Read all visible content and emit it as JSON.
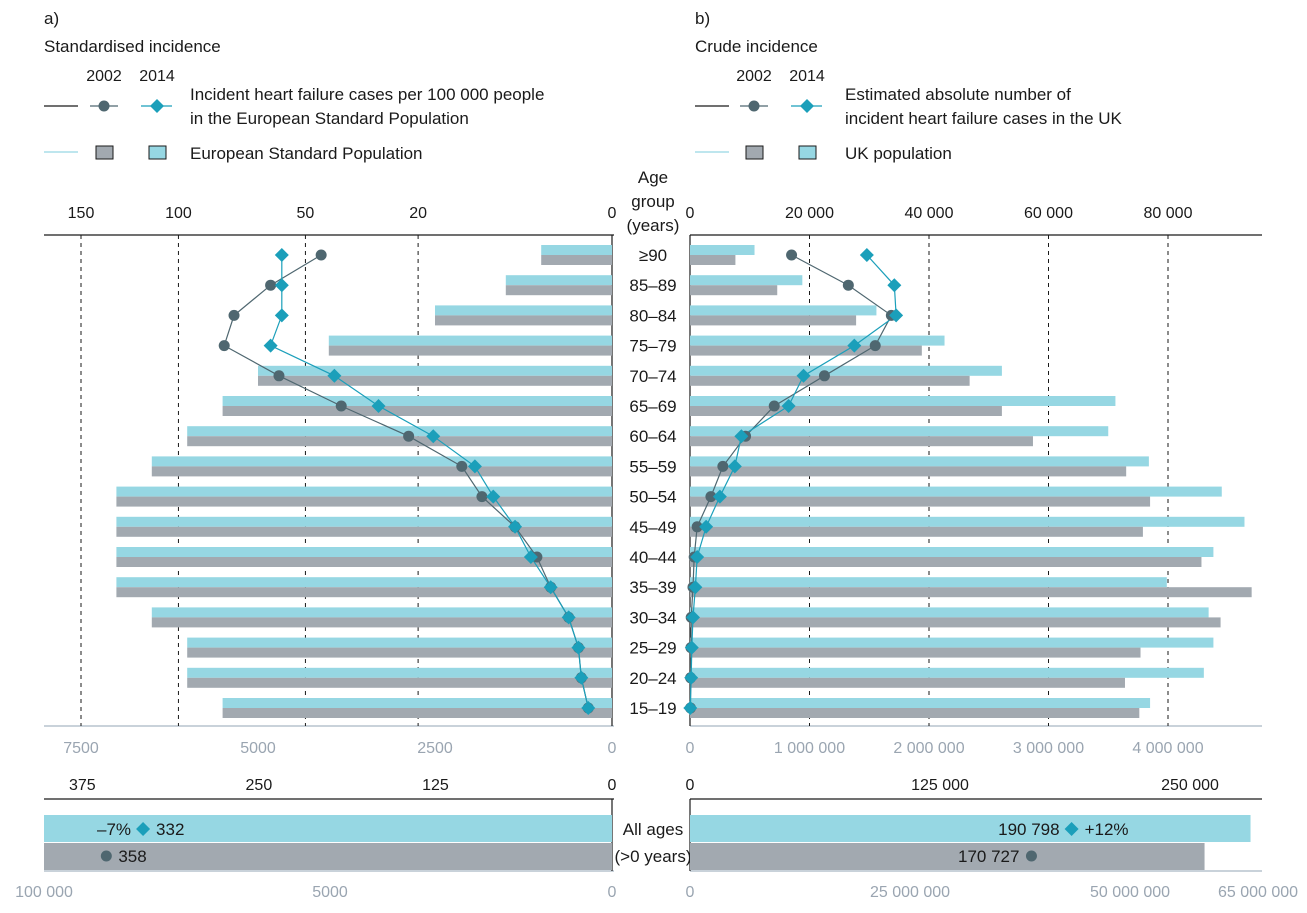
{
  "panels": {
    "a": {
      "letter": "a)",
      "title": "Standardised incidence"
    },
    "b": {
      "letter": "b)",
      "title": "Crude incidence"
    }
  },
  "legend": {
    "a": {
      "year_2002": "2002",
      "year_2014": "2014",
      "line1": "Incident heart failure cases per 100 000 people",
      "line2": "in the European Standard Population",
      "pop": "European Standard Population"
    },
    "b": {
      "year_2002": "2002",
      "year_2014": "2014",
      "line1": "Estimated absolute number of",
      "line2": "incident heart failure cases in the UK",
      "pop": "UK population"
    }
  },
  "center": {
    "head": [
      "Age",
      "group",
      "(years)"
    ],
    "all_ages_1": "All ages",
    "all_ages_2": "(>0 years)"
  },
  "colors": {
    "y2002": "#a2a9b0",
    "y2014": "#96d7e3",
    "marker2002": "#4f6770",
    "marker2014": "#1b9fba",
    "axis_secondary": "#a9b7c4"
  },
  "chart_data": [
    {
      "panel": "a",
      "type": "bar",
      "title": "Standardised incidence",
      "categories": [
        "15–19",
        "20–24",
        "25–29",
        "30–34",
        "35–39",
        "40–44",
        "45–49",
        "50–54",
        "55–59",
        "60–64",
        "65–69",
        "70–74",
        "75–79",
        "80–84",
        "85–89",
        "≥90"
      ],
      "incidence_axis_ticks": [
        "150",
        "100",
        "50",
        "20",
        "0"
      ],
      "population_axis_ticks": [
        "7500",
        "5000",
        "2500",
        "0"
      ],
      "population_xlim": [
        0,
        7500
      ],
      "population": [
        {
          "name": "2002",
          "values": [
            5500,
            6000,
            6000,
            6500,
            7000,
            7000,
            7000,
            7000,
            6500,
            6000,
            5500,
            5000,
            4000,
            2500,
            1500,
            1000
          ]
        },
        {
          "name": "2014",
          "values": [
            5500,
            6000,
            6000,
            6500,
            7000,
            7000,
            7000,
            7000,
            6500,
            6000,
            5500,
            5000,
            4000,
            2500,
            1500,
            1000
          ]
        }
      ],
      "incidence": [
        {
          "name": "2002",
          "values": [
            0.3,
            0.5,
            0.6,
            1,
            2,
            3,
            5,
            9,
            12,
            22,
            39,
            59,
            80,
            76,
            62,
            45
          ]
        },
        {
          "name": "2014",
          "values": [
            0.3,
            0.5,
            0.6,
            1,
            2,
            3.5,
            5,
            7.5,
            10,
            17,
            29,
            41,
            62,
            58,
            58,
            58
          ]
        }
      ],
      "summary": {
        "incidence_ticks": [
          "375",
          "250",
          "125",
          "0"
        ],
        "population_ticks": [
          "100 000",
          "5000",
          "0"
        ],
        "incidence_xlim": [
          0,
          400
        ],
        "incidence_2002": 358,
        "incidence_2014": 332,
        "label_2002": "358",
        "label_2014": "332",
        "change": "–7%"
      }
    },
    {
      "panel": "b",
      "type": "bar",
      "title": "Crude incidence",
      "categories": [
        "15–19",
        "20–24",
        "25–29",
        "30–34",
        "35–39",
        "40–44",
        "45–49",
        "50–54",
        "55–59",
        "60–64",
        "65–69",
        "70–74",
        "75–79",
        "80–84",
        "85–89",
        "≥90"
      ],
      "cases_axis_ticks": [
        "0",
        "20 000",
        "40 000",
        "60 000",
        "80 000"
      ],
      "cases_xlim": [
        0,
        95000
      ],
      "population_axis_ticks": [
        "0",
        "1 000 000",
        "2 000 000",
        "3 000 000",
        "4 000 000"
      ],
      "population_xlim": [
        0,
        4750000
      ],
      "population": [
        {
          "name": "2002",
          "values": [
            3760000,
            3640000,
            3770000,
            4440000,
            4700000,
            4280000,
            3790000,
            3850000,
            3650000,
            2870000,
            2610000,
            2340000,
            1940000,
            1390000,
            730000,
            380000
          ]
        },
        {
          "name": "2014",
          "values": [
            3850000,
            4300000,
            4380000,
            4340000,
            3990000,
            4380000,
            4640000,
            4450000,
            3840000,
            3500000,
            3560000,
            2610000,
            2130000,
            1560000,
            940000,
            540000
          ]
        }
      ],
      "incidence": [
        {
          "name": "2002",
          "values": [
            80,
            100,
            150,
            200,
            500,
            700,
            1200,
            3500,
            5500,
            9300,
            14100,
            22500,
            31000,
            33700,
            26500,
            17000
          ]
        },
        {
          "name": "2014",
          "values": [
            50,
            200,
            300,
            500,
            900,
            1200,
            2700,
            5000,
            7500,
            8600,
            16500,
            19000,
            27500,
            34500,
            34200,
            29600
          ]
        }
      ],
      "summary": {
        "cases_ticks": [
          "0",
          "125 000",
          "250 000"
        ],
        "population_ticks": [
          "0",
          "25 000 000",
          "50 000 000",
          "65 000 000"
        ],
        "cases_xlim": [
          0,
          315000
        ],
        "population_xlim": [
          0,
          65000000
        ],
        "population_2002": 59300000,
        "population_2014": 64600000,
        "cases_2002": 170727,
        "cases_2014": 190798,
        "label_2002": "170 727",
        "label_2014": "190 798",
        "change": "+12%"
      }
    }
  ]
}
